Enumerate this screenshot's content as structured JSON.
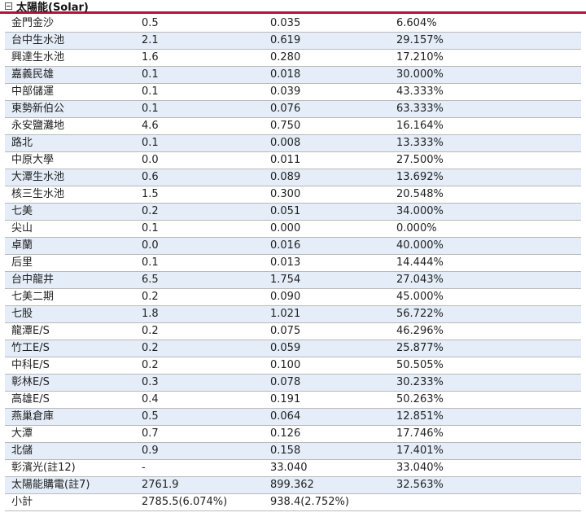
{
  "section": {
    "title": "太陽能(Solar)",
    "toggle_icon": "minus-square-icon"
  },
  "colors": {
    "header_rule": "#b0143c",
    "alt_row": "#e4edf8",
    "row_rule": "#b9b9b9"
  },
  "rows": [
    [
      "金門金沙",
      "0.5",
      "0.035",
      "6.604%"
    ],
    [
      "台中生水池",
      "2.1",
      "0.619",
      "29.157%"
    ],
    [
      "興達生水池",
      "1.6",
      "0.280",
      "17.210%"
    ],
    [
      "嘉義民雄",
      "0.1",
      "0.018",
      "30.000%"
    ],
    [
      "中部儲運",
      "0.1",
      "0.039",
      "43.333%"
    ],
    [
      "東勢新伯公",
      "0.1",
      "0.076",
      "63.333%"
    ],
    [
      "永安鹽灘地",
      "4.6",
      "0.750",
      "16.164%"
    ],
    [
      "路北",
      "0.1",
      "0.008",
      "13.333%"
    ],
    [
      "中原大學",
      "0.0",
      "0.011",
      "27.500%"
    ],
    [
      "大潭生水池",
      "0.6",
      "0.089",
      "13.692%"
    ],
    [
      "核三生水池",
      "1.5",
      "0.300",
      "20.548%"
    ],
    [
      "七美",
      "0.2",
      "0.051",
      "34.000%"
    ],
    [
      "尖山",
      "0.1",
      "0.000",
      "0.000%"
    ],
    [
      "卓蘭",
      "0.0",
      "0.016",
      "40.000%"
    ],
    [
      "后里",
      "0.1",
      "0.013",
      "14.444%"
    ],
    [
      "台中龍井",
      "6.5",
      "1.754",
      "27.043%"
    ],
    [
      "七美二期",
      "0.2",
      "0.090",
      "45.000%"
    ],
    [
      "七股",
      "1.8",
      "1.021",
      "56.722%"
    ],
    [
      "龍潭E/S",
      "0.2",
      "0.075",
      "46.296%"
    ],
    [
      "竹工E/S",
      "0.2",
      "0.059",
      "25.877%"
    ],
    [
      "中科E/S",
      "0.2",
      "0.100",
      "50.505%"
    ],
    [
      "彰林E/S",
      "0.3",
      "0.078",
      "30.233%"
    ],
    [
      "高雄E/S",
      "0.4",
      "0.191",
      "50.263%"
    ],
    [
      "燕巢倉庫",
      "0.5",
      "0.064",
      "12.851%"
    ],
    [
      "大潭",
      "0.7",
      "0.126",
      "17.746%"
    ],
    [
      "北儲",
      "0.9",
      "0.158",
      "17.401%"
    ],
    [
      "彰濱光(註12)",
      "-",
      "33.040",
      "33.040%"
    ],
    [
      "太陽能購電(註7)",
      "2761.9",
      "899.362",
      "32.563%"
    ],
    [
      "小計",
      "2785.5(6.074%)",
      "938.4(2.752%)",
      ""
    ]
  ]
}
